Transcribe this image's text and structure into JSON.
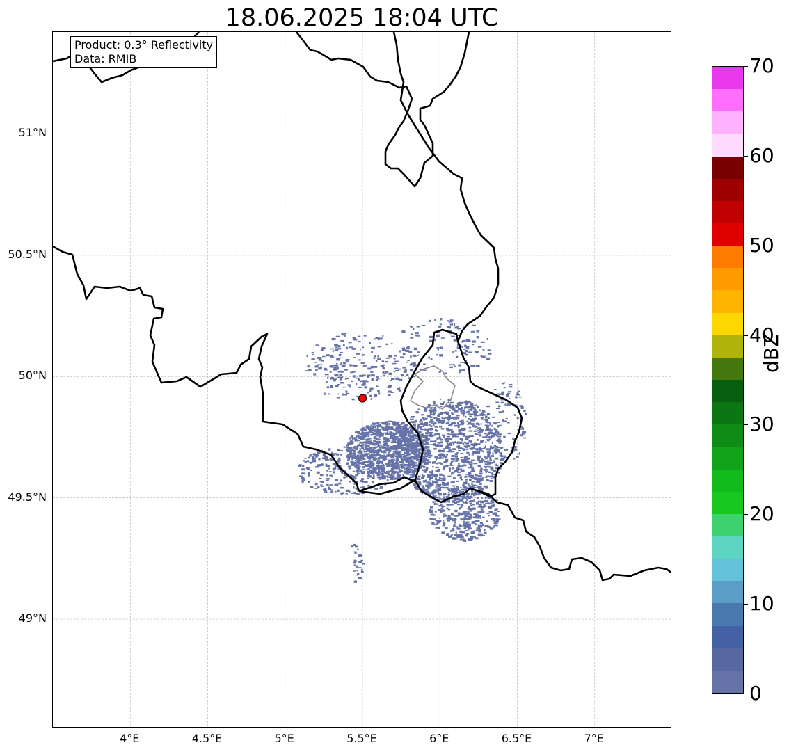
{
  "title": "18.06.2025 18:04 UTC",
  "info": {
    "product": "Product: 0.3° Reflectivity",
    "data": "Data: RMIB"
  },
  "map": {
    "lon_range": [
      3.5,
      7.5
    ],
    "lat_range": [
      48.55,
      51.42
    ],
    "lon_ticks": [
      {
        "value": 4.0,
        "label": "4°E"
      },
      {
        "value": 4.5,
        "label": "4.5°E"
      },
      {
        "value": 5.0,
        "label": "5°E"
      },
      {
        "value": 5.5,
        "label": "5.5°E"
      },
      {
        "value": 6.0,
        "label": "6°E"
      },
      {
        "value": 6.5,
        "label": "6.5°E"
      },
      {
        "value": 7.0,
        "label": "7°E"
      }
    ],
    "lat_ticks": [
      {
        "value": 49.0,
        "label": "49°N"
      },
      {
        "value": 49.5,
        "label": "49.5°N"
      },
      {
        "value": 50.0,
        "label": "50°N"
      },
      {
        "value": 50.5,
        "label": "50.5°N"
      },
      {
        "value": 51.0,
        "label": "51°N"
      }
    ],
    "grid": true,
    "radar_site": {
      "lon": 5.5,
      "lat": 49.91,
      "color": "#ff0000"
    },
    "echo_color": "#6673a8"
  },
  "colorbar": {
    "label": "dBZ",
    "ticks": [
      "0",
      "10",
      "20",
      "30",
      "40",
      "50",
      "60",
      "70"
    ],
    "colors": [
      "#6673a8",
      "#56689f",
      "#4461a5",
      "#4a79b0",
      "#5b9dc7",
      "#63c1d9",
      "#5dd5c2",
      "#3cd26e",
      "#17c91f",
      "#12ba1c",
      "#10a319",
      "#0e8c16",
      "#0b7612",
      "#065e0e",
      "#467810",
      "#b0b40a",
      "#ffd700",
      "#ffb500",
      "#ff9a00",
      "#ff7c00",
      "#e00000",
      "#c00000",
      "#9e0000",
      "#7a0000",
      "#ffdcff",
      "#ffb2ff",
      "#ff6eff",
      "#ec38ec"
    ]
  }
}
